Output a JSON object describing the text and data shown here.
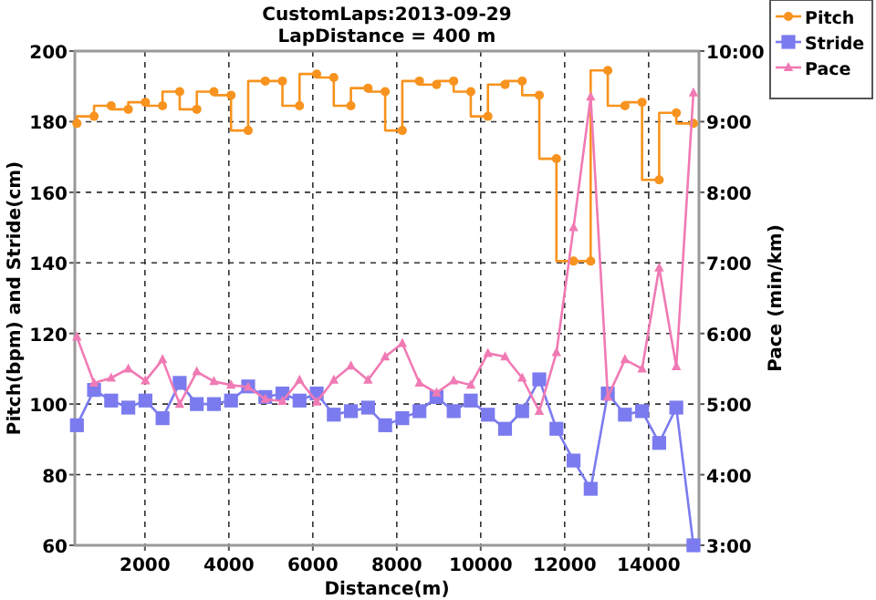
{
  "chart_data": {
    "type": "line",
    "title": "CustomLaps:2013-09-29",
    "subtitle": "LapDistance = 400 m",
    "xlabel": "Distance(m)",
    "ylabel": "Pitch(bpm) and Stride(cm)",
    "y2label": "Pace (min/km)",
    "x": [
      380,
      788,
      1196,
      1604,
      2012,
      2420,
      2828,
      3236,
      3644,
      4052,
      4460,
      4868,
      5276,
      5684,
      6092,
      6500,
      6908,
      7316,
      7724,
      8132,
      8540,
      8948,
      9356,
      9764,
      10172,
      10580,
      10988,
      11396,
      11804,
      12212,
      12620,
      13028,
      13436,
      13844,
      14252,
      14660,
      15068
    ],
    "series": [
      {
        "name": "Pitch",
        "type": "step",
        "color": "#f7931e",
        "marker": "circle",
        "values": [
          179.5,
          181.5,
          184.5,
          183.5,
          185.5,
          184.5,
          188.5,
          183.5,
          188.5,
          187.5,
          177.5,
          191.5,
          191.5,
          184.5,
          193.5,
          192.5,
          184.5,
          189.5,
          188.5,
          177.5,
          191.5,
          190.5,
          191.5,
          188.5,
          181.5,
          190.5,
          191.5,
          187.5,
          169.5,
          140.5,
          140.5,
          194.5,
          184.5,
          185.5,
          163.5,
          182.5,
          179.5
        ]
      },
      {
        "name": "Stride",
        "color": "#7b7bef",
        "marker": "square",
        "values": [
          94,
          104,
          101,
          99,
          101,
          96,
          106,
          100,
          100,
          101,
          105,
          102,
          103,
          101,
          103,
          97,
          98,
          99,
          94,
          96,
          98,
          102,
          98,
          101,
          97,
          93,
          98,
          107,
          93,
          84,
          76,
          103,
          97,
          98,
          89,
          99,
          60
        ]
      },
      {
        "name": "Pace",
        "axis": "y2",
        "color": "#f07ab4",
        "marker": "triangle",
        "values": [
          5.95,
          5.3,
          5.37,
          5.5,
          5.33,
          5.63,
          5.0,
          5.46,
          5.32,
          5.27,
          5.24,
          5.07,
          5.04,
          5.34,
          5.03,
          5.34,
          5.54,
          5.34,
          5.67,
          5.86,
          5.3,
          5.16,
          5.33,
          5.27,
          5.72,
          5.67,
          5.37,
          4.9,
          5.73,
          7.5,
          9.35,
          5.1,
          5.63,
          5.5,
          6.93,
          5.53,
          9.41
        ]
      }
    ],
    "xlim": [
      330,
      15200
    ],
    "xticks": [
      2000,
      4000,
      6000,
      8000,
      10000,
      12000,
      14000
    ],
    "ylim": [
      60,
      200
    ],
    "yticks": [
      60,
      80,
      100,
      120,
      140,
      160,
      180,
      200
    ],
    "y2lim": [
      3,
      10
    ],
    "y2ticks": [
      {
        "value": 3,
        "label": "3:00"
      },
      {
        "value": 4,
        "label": "4:00"
      },
      {
        "value": 5,
        "label": "5:00"
      },
      {
        "value": 6,
        "label": "6:00"
      },
      {
        "value": 7,
        "label": "7:00"
      },
      {
        "value": 8,
        "label": "8:00"
      },
      {
        "value": 9,
        "label": "9:00"
      },
      {
        "value": 10,
        "label": "10:00"
      }
    ],
    "grid": true,
    "legend": "top right",
    "line_style": "solid"
  }
}
